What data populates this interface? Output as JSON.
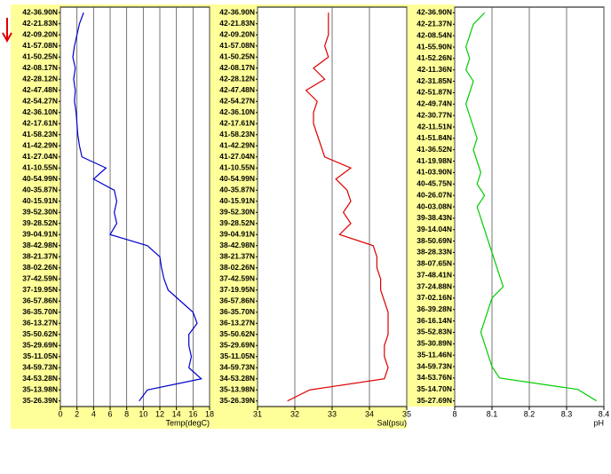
{
  "chart_data": [
    {
      "type": "line",
      "xlabel": "Temp(degC)",
      "color": "#0000cc",
      "categories": [
        "42-36.90N",
        "42-21.83N",
        "42-09.20N",
        "41-57.08N",
        "41-50.25N",
        "42-08.17N",
        "42-28.12N",
        "42-47.48N",
        "42-54.27N",
        "42-36.10N",
        "42-17.61N",
        "41-58.23N",
        "41-42.29N",
        "41-27.04N",
        "41-10.55N",
        "40-54.99N",
        "40-35.87N",
        "40-15.91N",
        "39-52.30N",
        "39-28.52N",
        "39-04.91N",
        "38-42.98N",
        "38-21.37N",
        "38-02.26N",
        "37-42.59N",
        "37-19.95N",
        "36-57.86N",
        "36-35.70N",
        "36-13.27N",
        "35-50.62N",
        "35-29.69N",
        "35-11.05N",
        "34-59.73N",
        "34-53.28N",
        "35-13.98N",
        "35-26.39N"
      ],
      "values": [
        2.8,
        2.3,
        2.0,
        1.7,
        1.5,
        1.8,
        1.6,
        1.8,
        1.7,
        1.9,
        2.0,
        2.1,
        2.3,
        2.6,
        5.5,
        4.0,
        6.5,
        6.8,
        6.5,
        6.8,
        6.0,
        10.5,
        12.0,
        12.2,
        12.5,
        13.0,
        14.5,
        16.0,
        16.5,
        15.5,
        15.5,
        15.8,
        15.5,
        17.0,
        10.5,
        9.5
      ],
      "xlim": [
        0,
        18
      ],
      "xticks": [
        0,
        2,
        4,
        6,
        8,
        10,
        12,
        14,
        16,
        18
      ],
      "grid": true
    },
    {
      "type": "line",
      "xlabel": "Sal(psu)",
      "color": "#dd0000",
      "categories": [
        "42-36.90N",
        "42-21.83N",
        "42-09.20N",
        "41-57.08N",
        "41-50.25N",
        "42-08.17N",
        "42-28.12N",
        "42-47.48N",
        "42-54.27N",
        "42-36.10N",
        "42-17.61N",
        "41-58.23N",
        "41-42.29N",
        "41-27.04N",
        "41-10.55N",
        "40-54.99N",
        "40-35.87N",
        "40-15.91N",
        "39-52.30N",
        "39-28.52N",
        "39-04.91N",
        "38-42.98N",
        "38-21.37N",
        "38-02.26N",
        "37-42.59N",
        "37-19.95N",
        "36-57.86N",
        "36-35.70N",
        "36-13.27N",
        "35-50.62N",
        "35-29.69N",
        "35-11.05N",
        "34-59.73N",
        "34-53.28N",
        "35-13.98N",
        "35-26.39N"
      ],
      "values": [
        32.9,
        32.9,
        32.9,
        32.8,
        32.9,
        32.5,
        32.8,
        32.3,
        32.6,
        32.5,
        32.5,
        32.6,
        32.7,
        32.8,
        33.5,
        33.1,
        33.4,
        33.5,
        33.3,
        33.5,
        33.2,
        34.1,
        34.2,
        34.2,
        34.3,
        34.3,
        34.4,
        34.5,
        34.5,
        34.5,
        34.4,
        34.4,
        34.5,
        34.4,
        32.4,
        31.8
      ],
      "xlim": [
        31,
        35
      ],
      "xticks": [
        31,
        32,
        33,
        34,
        35
      ],
      "grid": true
    },
    {
      "type": "line",
      "xlabel": "pH",
      "color": "#00cc00",
      "categories": [
        "42-36.90N",
        "42-21.37N",
        "42-08.54N",
        "41-55.90N",
        "41-52.26N",
        "42-11.36N",
        "42-31.85N",
        "42-51.87N",
        "42-49.74N",
        "42-30.77N",
        "42-11.51N",
        "41-51.84N",
        "41-36.52N",
        "41-19.98N",
        "41-03.90N",
        "40-45.75N",
        "40-26.07N",
        "40-03.08N",
        "39-38.43N",
        "39-14.04N",
        "38-50.69N",
        "38-28.33N",
        "38-07.65N",
        "37-48.41N",
        "37-24.88N",
        "37-02.16N",
        "36-39.28N",
        "36-16.14N",
        "35-52.83N",
        "35-30.89N",
        "35-11.46N",
        "34-59.73N",
        "34-53.76N",
        "35-14.70N",
        "35-27.69N"
      ],
      "values": [
        8.08,
        8.05,
        8.04,
        8.03,
        8.04,
        8.03,
        8.05,
        8.04,
        8.03,
        8.04,
        8.05,
        8.06,
        8.05,
        8.06,
        8.07,
        8.06,
        8.08,
        8.06,
        8.07,
        8.08,
        8.09,
        8.1,
        8.11,
        8.12,
        8.13,
        8.1,
        8.09,
        8.08,
        8.07,
        8.08,
        8.09,
        8.1,
        8.12,
        8.33,
        8.38
      ],
      "xlim": [
        8,
        8.4
      ],
      "xticks": [
        8,
        8.1,
        8.2,
        8.3,
        8.4
      ],
      "grid": true
    }
  ]
}
